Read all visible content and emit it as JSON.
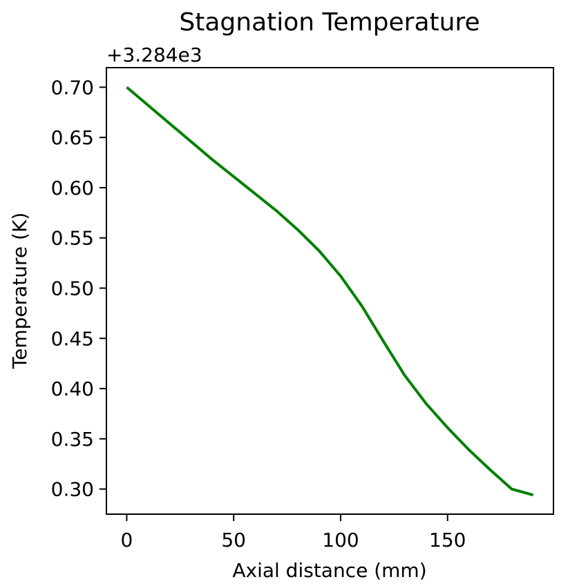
{
  "chart_data": {
    "type": "line",
    "title": "Stagnation Temperature",
    "xlabel": "Axial distance (mm)",
    "ylabel": "Temperature (K)",
    "y_offset_label": "+3.284e3",
    "xlim": [
      -9.5,
      199.5
    ],
    "ylim": [
      0.275,
      0.7195
    ],
    "xticks": [
      0,
      50,
      100,
      150
    ],
    "xtick_labels": [
      "0",
      "50",
      "100",
      "150"
    ],
    "yticks": [
      0.3,
      0.35,
      0.4,
      0.45,
      0.5,
      0.55,
      0.6,
      0.65,
      0.7
    ],
    "ytick_labels": [
      "0.30",
      "0.35",
      "0.40",
      "0.45",
      "0.50",
      "0.55",
      "0.60",
      "0.65",
      "0.70"
    ],
    "grid": false,
    "series": [
      {
        "color": "#008000",
        "x": [
          0,
          10,
          20,
          30,
          40,
          50,
          60,
          70,
          80,
          90,
          100,
          110,
          120,
          130,
          140,
          150,
          160,
          170,
          180,
          190
        ],
        "y": [
          0.7,
          0.682,
          0.664,
          0.646,
          0.628,
          0.611,
          0.594,
          0.577,
          0.558,
          0.537,
          0.512,
          0.482,
          0.447,
          0.413,
          0.385,
          0.361,
          0.339,
          0.319,
          0.3,
          0.294
        ]
      }
    ]
  }
}
